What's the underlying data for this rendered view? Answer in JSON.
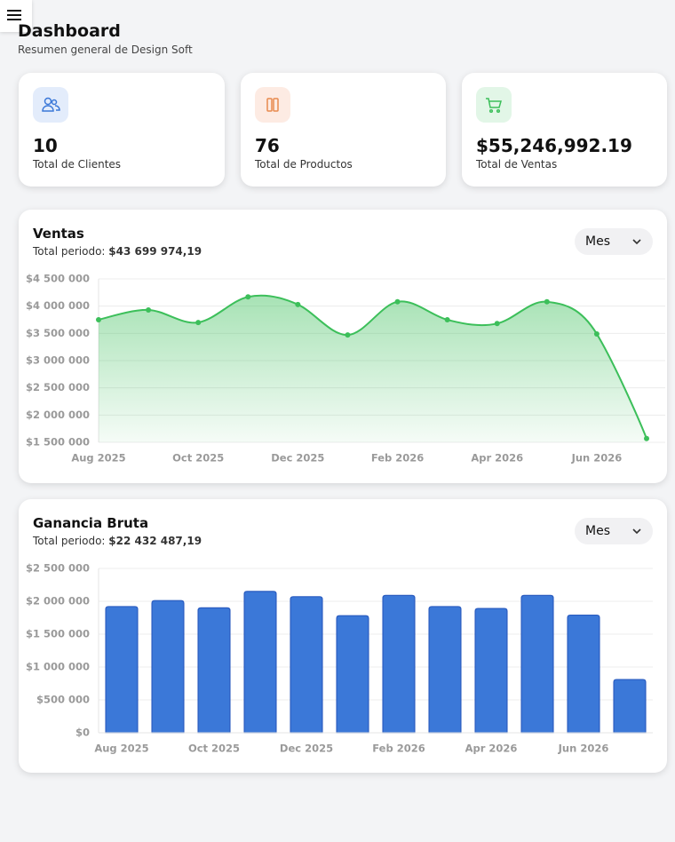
{
  "header": {
    "title": "Dashboard",
    "subtitle": "Resumen general de Design Soft"
  },
  "cards": [
    {
      "value": "10",
      "label": "Total de Clientes"
    },
    {
      "value": "76",
      "label": "Total de Productos"
    },
    {
      "value": "$55,246,992.19",
      "label": "Total de Ventas"
    }
  ],
  "chart_data": [
    {
      "type": "line",
      "title": "Ventas",
      "total_label": "Total periodo:",
      "total_value": "$43 699 974,19",
      "dropdown": "Mes",
      "categories": [
        "Aug 2025",
        null,
        "Oct 2025",
        null,
        "Dec 2025",
        null,
        "Feb 2026",
        null,
        "Apr 2026",
        null,
        "Jun 2026",
        null
      ],
      "values": [
        3750000,
        3930000,
        3700000,
        4170000,
        4030000,
        3470000,
        4080000,
        3750000,
        3680000,
        4080000,
        3490000,
        1570000
      ],
      "color": "#3cbf5a",
      "ylim": [
        1500000,
        4500000
      ],
      "yticks": [
        {
          "value": 1500000,
          "label": "$1 500 000"
        },
        {
          "value": 2000000,
          "label": "$2 000 000"
        },
        {
          "value": 2500000,
          "label": "$2 500 000"
        },
        {
          "value": 3000000,
          "label": "$3 000 000"
        },
        {
          "value": 3500000,
          "label": "$3 500 000"
        },
        {
          "value": 4000000,
          "label": "$4 000 000"
        },
        {
          "value": 4500000,
          "label": "$4 500 000"
        }
      ],
      "grid": true
    },
    {
      "type": "bar",
      "title": "Ganancia Bruta",
      "total_label": "Total periodo:",
      "total_value": "$22 432 487,19",
      "dropdown": "Mes",
      "categories": [
        "Aug 2025",
        null,
        "Oct 2025",
        null,
        "Dec 2025",
        null,
        "Feb 2026",
        null,
        "Apr 2026",
        null,
        "Jun 2026",
        null
      ],
      "values": [
        1920000,
        2010000,
        1900000,
        2150000,
        2070000,
        1780000,
        2090000,
        1920000,
        1890000,
        2090000,
        1790000,
        810000
      ],
      "color": "#3b78d8",
      "ylim": [
        0,
        2500000
      ],
      "yticks": [
        {
          "value": 0,
          "label": "$0"
        },
        {
          "value": 500000,
          "label": "$500 000"
        },
        {
          "value": 1000000,
          "label": "$1 000 000"
        },
        {
          "value": 1500000,
          "label": "$1 500 000"
        },
        {
          "value": 2000000,
          "label": "$2 000 000"
        },
        {
          "value": 2500000,
          "label": "$2 500 000"
        }
      ],
      "grid": true
    }
  ]
}
